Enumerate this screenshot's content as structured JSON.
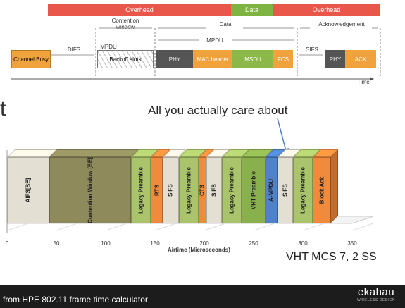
{
  "top_diagram": {
    "bands": {
      "overhead_left": "Overhead",
      "data": "Data",
      "overhead_right": "Overhead"
    },
    "labels": {
      "contention_window": "Contention window",
      "data_span": "Data",
      "acknowledgement": "Acknowledgement",
      "difs": "DIFS",
      "mpdu_left": "MPDU",
      "mpdu_span": "MPDU",
      "sifs": "SIFS",
      "time": "Time"
    },
    "segments": {
      "channel_busy": "Channel Busy",
      "backoff_slots": "Backoff slots",
      "phy": "PHY",
      "mac_header": "MAC header",
      "msdu": "MSDU",
      "fcs": "FCS",
      "ack_phy": "PHY",
      "ack": "ACK"
    }
  },
  "callout": "All you actually care about",
  "left_char": "t",
  "chart_data": {
    "type": "bar",
    "xlabel": "Airtime (Microseconds)",
    "xlim": [
      0,
      350
    ],
    "xticks": [
      0,
      50,
      100,
      150,
      200,
      250,
      300,
      350
    ],
    "bars": [
      {
        "label": "AIFS[BE]",
        "start": 0,
        "end": 43,
        "color": "#e3dfd2"
      },
      {
        "label": "Contention Window [BE]",
        "start": 43,
        "end": 126,
        "color": "#8e8a5c"
      },
      {
        "label": "Legacy Preamble",
        "start": 126,
        "end": 146,
        "color": "#a9c46a"
      },
      {
        "label": "RTS",
        "start": 146,
        "end": 158,
        "color": "#f08a3c"
      },
      {
        "label": "SIFS",
        "start": 158,
        "end": 174,
        "color": "#e3dfd2"
      },
      {
        "label": "Legacy Preamble",
        "start": 174,
        "end": 194,
        "color": "#a9c46a"
      },
      {
        "label": "CTS",
        "start": 194,
        "end": 202,
        "color": "#f08a3c"
      },
      {
        "label": "SIFS",
        "start": 202,
        "end": 218,
        "color": "#e3dfd2"
      },
      {
        "label": "Legacy Preamble",
        "start": 218,
        "end": 238,
        "color": "#a9c46a"
      },
      {
        "label": "VHT Preamble",
        "start": 238,
        "end": 262,
        "color": "#8ab04e"
      },
      {
        "label": "A-MPDU",
        "start": 262,
        "end": 274,
        "color": "#4e82c9"
      },
      {
        "label": "SIFS",
        "start": 274,
        "end": 290,
        "color": "#e3dfd2"
      },
      {
        "label": "Legacy Preamble",
        "start": 290,
        "end": 310,
        "color": "#a9c46a"
      },
      {
        "label": "Block Ack",
        "start": 310,
        "end": 328,
        "color": "#f08a3c"
      }
    ]
  },
  "vht_label": "VHT MCS 7, 2 SS",
  "footer": {
    "source": "from HPE 802.11 frame time calculator",
    "brand": "ekahau",
    "brand_sub": "WIRELESS DESIGN"
  }
}
